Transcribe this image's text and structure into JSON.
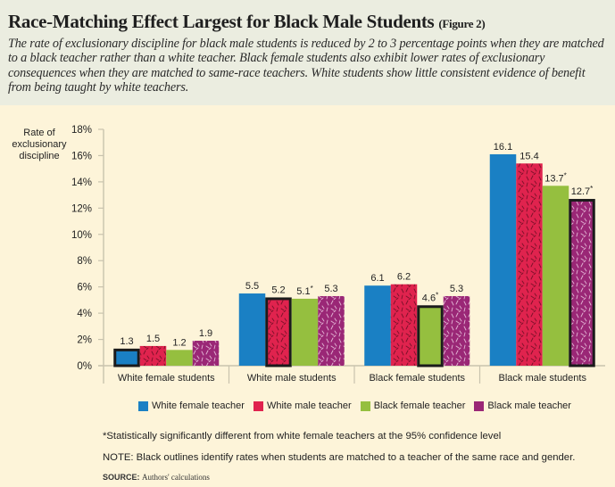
{
  "header": {
    "title": "Race-Matching Effect Largest for Black Male Students",
    "figure_label": "(Figure 2)",
    "subtitle": "The rate of exclusionary discipline for black male students is reduced by 2 to 3 percentage points when they are matched to a black teacher rather than a white teacher. Black female students also exhibit lower rates of exclusionary consequences when they are matched to same-race teachers. White students show little consistent evidence of benefit from being taught by white teachers."
  },
  "colors": {
    "white_female_teacher": "#1a80c4",
    "white_male_teacher": "#e0234e",
    "black_female_teacher": "#95bf3f",
    "black_male_teacher": "#9a2776",
    "header_bg": "#ebede0",
    "chart_bg": "#fdf4d9"
  },
  "chart_data": {
    "type": "bar",
    "title": "Race-Matching Effect Largest for Black Male Students",
    "ylabel": "Rate of exclusionary discipline",
    "xlabel": "",
    "ylim": [
      0,
      18
    ],
    "yticks": [
      "0%",
      "2%",
      "4%",
      "6%",
      "8%",
      "10%",
      "12%",
      "14%",
      "16%",
      "18%"
    ],
    "ytick_values": [
      0,
      2,
      4,
      6,
      8,
      10,
      12,
      14,
      16,
      18
    ],
    "grid": false,
    "legend_position": "bottom",
    "categories": [
      "White female students",
      "White male students",
      "Black female students",
      "Black male students"
    ],
    "series": [
      {
        "name": "White female teacher",
        "values": [
          1.3,
          5.5,
          6.1,
          16.1
        ],
        "labels": [
          "1.3",
          "5.5",
          "6.1",
          "16.1"
        ],
        "significant": [
          false,
          false,
          false,
          false
        ],
        "matched": [
          true,
          false,
          false,
          false
        ],
        "pattern": "solid"
      },
      {
        "name": "White male teacher",
        "values": [
          1.5,
          5.2,
          6.2,
          15.4
        ],
        "labels": [
          "1.5",
          "5.2",
          "6.2",
          "15.4"
        ],
        "significant": [
          false,
          false,
          false,
          false
        ],
        "matched": [
          false,
          true,
          false,
          false
        ],
        "pattern": "dark-speckle"
      },
      {
        "name": "Black female teacher",
        "values": [
          1.2,
          5.1,
          4.6,
          13.7
        ],
        "labels": [
          "1.2",
          "5.1",
          "4.6",
          "13.7"
        ],
        "significant": [
          false,
          true,
          true,
          true
        ],
        "matched": [
          false,
          false,
          true,
          false
        ],
        "pattern": "solid"
      },
      {
        "name": "Black male teacher",
        "values": [
          1.9,
          5.3,
          5.3,
          12.7
        ],
        "labels": [
          "1.9",
          "5.3",
          "5.3",
          "12.7"
        ],
        "significant": [
          false,
          false,
          false,
          true
        ],
        "matched": [
          false,
          false,
          false,
          true
        ],
        "pattern": "light-speckle"
      }
    ],
    "significance_marker": "*"
  },
  "footnotes": {
    "significance": "*Statistically significantly different from white female teachers at the 95% confidence level",
    "note": "NOTE: Black outlines identify rates when students are matched to a teacher of the same race and gender.",
    "source_label": "SOURCE:",
    "source_text": "Authors' calculations"
  }
}
